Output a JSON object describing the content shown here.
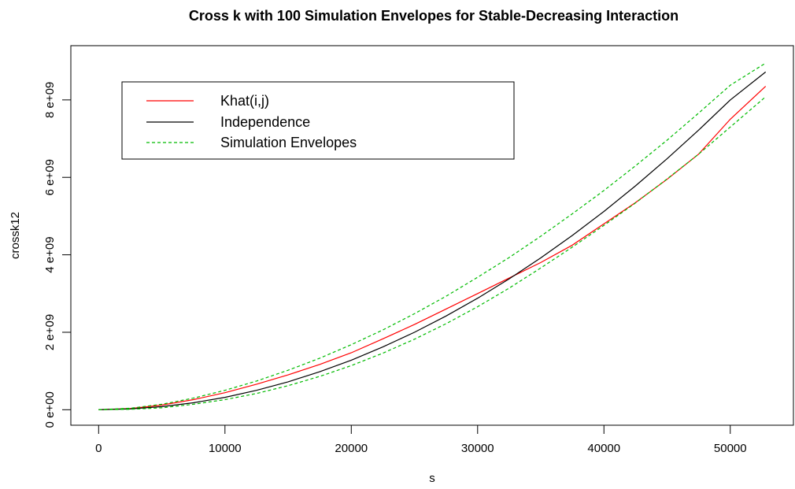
{
  "chart_data": {
    "type": "line",
    "title": "Cross k with 100 Simulation Envelopes for Stable-Decreasing Interaction",
    "xlabel": "s",
    "ylabel": "crossk12",
    "xlim": [
      -2200,
      55000
    ],
    "ylim": [
      -400000000.0,
      9400000000.0
    ],
    "x_ticks": [
      0,
      10000,
      20000,
      30000,
      40000,
      50000
    ],
    "x_tick_labels": [
      "0",
      "10000",
      "20000",
      "30000",
      "40000",
      "50000"
    ],
    "y_ticks": [
      0,
      2000000000.0,
      4000000000.0,
      6000000000.0,
      8000000000.0
    ],
    "y_tick_labels": [
      "0 e+00",
      "2 e+09",
      "4 e+09",
      "6 e+09",
      "8 e+09"
    ],
    "grid": false,
    "legend_position": "top-left",
    "x": [
      0,
      2500,
      5000,
      7500,
      10000,
      12500,
      15000,
      17500,
      20000,
      22500,
      25000,
      27500,
      30000,
      32500,
      35000,
      37500,
      40000,
      42500,
      45000,
      47500,
      50000,
      52800
    ],
    "series": [
      {
        "name": "Khat(i,j)",
        "color": "#ff0000",
        "style": "solid",
        "values": [
          0,
          30000000.0,
          120000000.0,
          260000000.0,
          440000000.0,
          660000000.0,
          900000000.0,
          1170000000.0,
          1470000000.0,
          1830000000.0,
          2200000000.0,
          2600000000.0,
          3000000000.0,
          3400000000.0,
          3800000000.0,
          4250000000.0,
          4800000000.0,
          5350000000.0,
          5950000000.0,
          6600000000.0,
          7500000000.0,
          8350000000.0
        ]
      },
      {
        "name": "Independence",
        "color": "#000000",
        "style": "solid",
        "values": [
          0,
          20000000.0,
          80000000.0,
          180000000.0,
          320000000.0,
          500000000.0,
          720000000.0,
          980000000.0,
          1280000000.0,
          1620000000.0,
          2000000000.0,
          2420000000.0,
          2880000000.0,
          3380000000.0,
          3920000000.0,
          4500000000.0,
          5120000000.0,
          5780000000.0,
          6480000000.0,
          7220000000.0,
          8000000000.0,
          8720000000.0
        ]
      },
      {
        "name": "Simulation Envelopes",
        "color": "#00bb00",
        "style": "dashed",
        "values": [
          0,
          40000000.0,
          140000000.0,
          300000000.0,
          500000000.0,
          740000000.0,
          1020000000.0,
          1330000000.0,
          1680000000.0,
          2060000000.0,
          2480000000.0,
          2930000000.0,
          3420000000.0,
          3930000000.0,
          4480000000.0,
          5060000000.0,
          5660000000.0,
          6300000000.0,
          6960000000.0,
          7660000000.0,
          8380000000.0,
          8950000000.0
        ]
      },
      {
        "name": "",
        "color": "#00bb00",
        "style": "dashed",
        "values": [
          0,
          10000000.0,
          50000000.0,
          140000000.0,
          260000000.0,
          420000000.0,
          620000000.0,
          860000000.0,
          1140000000.0,
          1460000000.0,
          1820000000.0,
          2220000000.0,
          2660000000.0,
          3140000000.0,
          3660000000.0,
          4200000000.0,
          4760000000.0,
          5340000000.0,
          5960000000.0,
          6600000000.0,
          7300000000.0,
          8080000000.0
        ]
      }
    ],
    "legend": [
      "Khat(i,j)",
      "Independence",
      "Simulation Envelopes"
    ]
  }
}
